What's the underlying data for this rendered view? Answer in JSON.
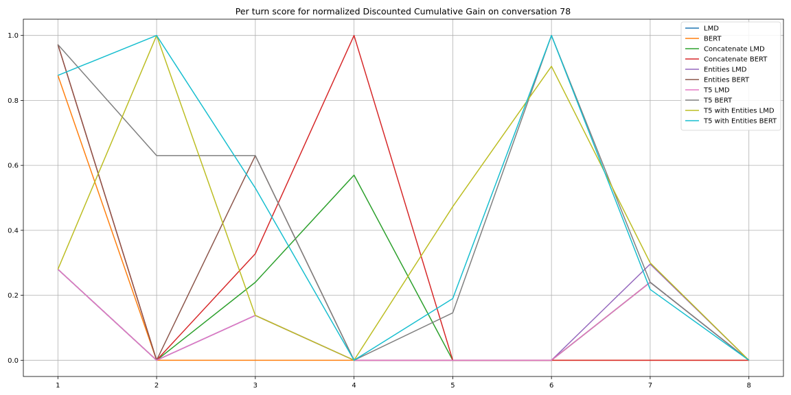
{
  "chart_data": {
    "type": "line",
    "title": "Per turn score for normalized Discounted Cumulative Gain on conversation 78",
    "xlabel": "",
    "ylabel": "",
    "x": [
      1,
      2,
      3,
      4,
      5,
      6,
      7,
      8
    ],
    "xlim": [
      0.65,
      8.35
    ],
    "ylim": [
      -0.05,
      1.05
    ],
    "xticks": [
      "1",
      "2",
      "3",
      "4",
      "5",
      "6",
      "7",
      "8"
    ],
    "yticks": [
      "0.0",
      "0.2",
      "0.4",
      "0.6",
      "0.8",
      "1.0"
    ],
    "grid": true,
    "legend_position": "top-right",
    "series": [
      {
        "name": "LMD",
        "color": "#1f77b4",
        "values": [
          0.28,
          0.0,
          0.138,
          0.0,
          0.0,
          0.0,
          0.24,
          0.0
        ]
      },
      {
        "name": "BERT",
        "color": "#ff7f0e",
        "values": [
          0.877,
          0.0,
          0.0,
          0.0,
          0.0,
          0.0,
          0.0,
          0.0
        ]
      },
      {
        "name": "Concatenate LMD",
        "color": "#2ca02c",
        "values": [
          0.28,
          0.0,
          0.24,
          0.57,
          0.0,
          0.0,
          0.24,
          0.0
        ]
      },
      {
        "name": "Concatenate BERT",
        "color": "#d62728",
        "values": [
          0.972,
          0.0,
          0.328,
          1.0,
          0.0,
          0.0,
          0.0,
          0.0
        ]
      },
      {
        "name": "Entities LMD",
        "color": "#9467bd",
        "values": [
          0.28,
          0.0,
          0.138,
          0.0,
          0.0,
          0.0,
          0.296,
          0.0
        ]
      },
      {
        "name": "Entities BERT",
        "color": "#8c564b",
        "values": [
          0.972,
          0.0,
          0.63,
          0.0,
          0.0,
          0.0,
          0.24,
          0.0
        ]
      },
      {
        "name": "T5 LMD",
        "color": "#e377c2",
        "values": [
          0.28,
          0.0,
          0.138,
          0.0,
          0.0,
          0.0,
          0.24,
          0.0
        ]
      },
      {
        "name": "T5 BERT",
        "color": "#7f7f7f",
        "values": [
          0.972,
          0.63,
          0.63,
          0.0,
          0.146,
          1.0,
          0.24,
          0.0
        ]
      },
      {
        "name": "T5 with Entities LMD",
        "color": "#bcbd22",
        "values": [
          0.28,
          1.0,
          0.138,
          0.0,
          0.473,
          0.905,
          0.3,
          0.0
        ]
      },
      {
        "name": "T5 with Entities BERT",
        "color": "#17becf",
        "values": [
          0.877,
          1.0,
          0.53,
          0.0,
          0.19,
          1.0,
          0.218,
          0.0
        ]
      }
    ]
  }
}
